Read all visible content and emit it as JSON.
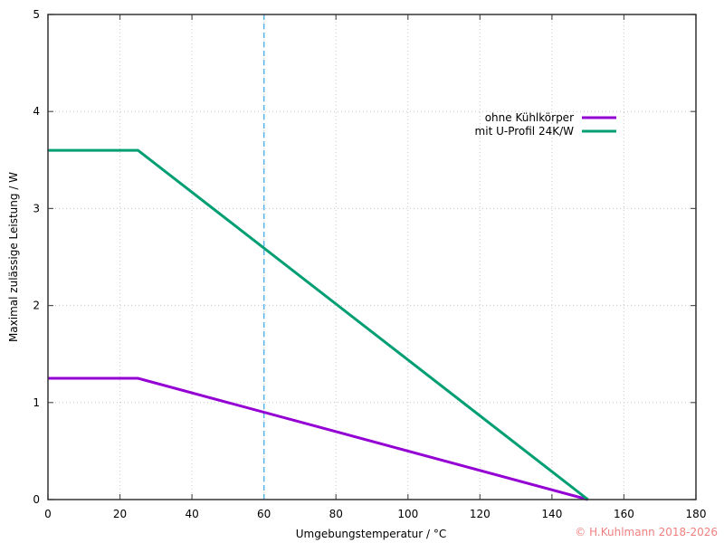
{
  "chart_data": {
    "type": "line",
    "title": "",
    "xlabel": "Umgebungstemperatur / °C",
    "ylabel": "Maximal zulässige Leistung / W",
    "xlim": [
      0,
      180
    ],
    "ylim": [
      0,
      5
    ],
    "xticks": [
      0,
      20,
      40,
      60,
      80,
      100,
      120,
      140,
      160,
      180
    ],
    "yticks": [
      0,
      1,
      2,
      3,
      4,
      5
    ],
    "grid": true,
    "legend_position": "upper right (inside)",
    "series": [
      {
        "name": "ohne Kühlkörper",
        "color": "#9400d3",
        "x": [
          0,
          25,
          150
        ],
        "y": [
          1.25,
          1.25,
          0
        ]
      },
      {
        "name": "mit U-Profil 24K/W",
        "color": "#009e73",
        "x": [
          0,
          25,
          150
        ],
        "y": [
          3.6,
          3.6,
          0
        ]
      }
    ],
    "annotations": [
      {
        "type": "vertical-dashed-line",
        "x": 60,
        "color": "#56b4e9"
      }
    ]
  },
  "copyright": "© H.Kuhlmann 2018-2026"
}
